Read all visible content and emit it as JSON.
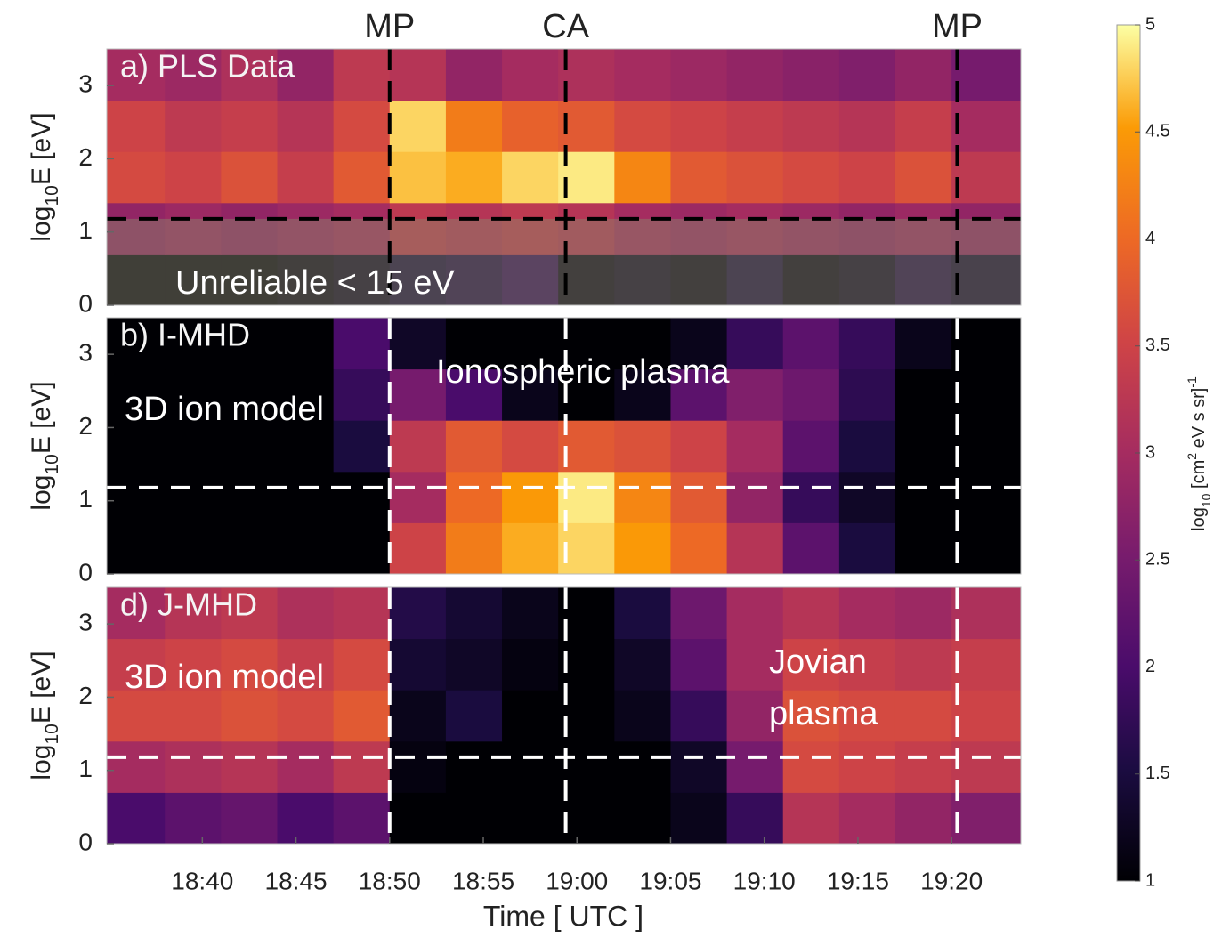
{
  "chart_data": [
    {
      "type": "heatmap",
      "title": "a) PLS Data",
      "markers": [
        {
          "label": "MP",
          "x": 50
        },
        {
          "label": "CA",
          "x": 59.4
        },
        {
          "label": "MP",
          "x": 80.3
        }
      ],
      "annotations": [
        "Unreliable < 15 eV"
      ],
      "hline": 1.18,
      "line_color": "#000000",
      "shade_below_hline": true,
      "ylabel": [
        "log",
        "10",
        "E [eV]"
      ],
      "xlim": [
        34.9,
        83.7
      ],
      "ylim": [
        0,
        3.5
      ],
      "yticks": [
        0,
        1,
        2,
        3
      ],
      "x_edges": [
        34.9,
        38,
        41,
        44,
        47,
        50,
        53,
        56,
        59,
        62,
        65,
        68,
        71,
        74,
        77,
        80,
        83.7
      ],
      "y_edges": [
        0,
        0.7,
        1.4,
        2.1,
        2.8,
        3.5
      ],
      "z": [
        [
          1.1,
          1.1,
          1.1,
          1.2,
          1.3,
          1.5,
          1.6,
          1.8,
          1.2,
          1.3,
          1.2,
          1.5,
          1.2,
          1.3,
          1.6,
          1.4
        ],
        [
          2.8,
          2.9,
          2.8,
          2.9,
          3.0,
          3.3,
          3.2,
          3.3,
          3.2,
          3.0,
          2.9,
          3.0,
          2.9,
          2.8,
          2.9,
          2.8
        ],
        [
          3.6,
          3.5,
          3.7,
          3.4,
          3.8,
          4.7,
          4.6,
          4.8,
          4.9,
          4.3,
          3.8,
          3.7,
          3.6,
          3.5,
          3.7,
          3.3
        ],
        [
          3.5,
          3.3,
          3.4,
          3.2,
          3.6,
          4.8,
          4.2,
          3.9,
          3.8,
          3.6,
          3.5,
          3.4,
          3.3,
          3.2,
          3.4,
          3.0
        ],
        [
          3.0,
          2.9,
          3.1,
          2.8,
          3.3,
          3.2,
          2.8,
          3.0,
          3.1,
          3.0,
          2.9,
          2.8,
          2.7,
          2.6,
          2.8,
          2.5
        ]
      ]
    },
    {
      "type": "heatmap",
      "title": "b) I-MHD",
      "annotations": [
        "3D ion model",
        "Ionospheric plasma"
      ],
      "hline": 1.18,
      "line_color": "#ffffff",
      "ylabel": [
        "log",
        "10",
        "E [eV]"
      ],
      "xlim": [
        34.9,
        83.7
      ],
      "ylim": [
        0,
        3.5
      ],
      "yticks": [
        0,
        1,
        2,
        3
      ],
      "x_edges": [
        34.9,
        38,
        41,
        44,
        47,
        50,
        53,
        56,
        59,
        62,
        65,
        68,
        71,
        74,
        77,
        80,
        83.7
      ],
      "y_edges": [
        0,
        0.7,
        1.4,
        2.1,
        2.8,
        3.5
      ],
      "z": [
        [
          1,
          1,
          1,
          1,
          1,
          3.5,
          4.2,
          4.6,
          4.8,
          4.5,
          4.0,
          3.2,
          2.2,
          1.5,
          1,
          1
        ],
        [
          1,
          1,
          1,
          1,
          1,
          3.0,
          4.0,
          4.5,
          4.9,
          4.3,
          3.8,
          2.8,
          1.8,
          1.3,
          1,
          1
        ],
        [
          1,
          1,
          1,
          1,
          1.5,
          3.3,
          3.8,
          3.6,
          3.8,
          3.7,
          3.5,
          3.0,
          2.2,
          1.5,
          1,
          1
        ],
        [
          1,
          1,
          1,
          1,
          1.8,
          2.5,
          2.0,
          1.2,
          1.0,
          1.2,
          2.2,
          2.6,
          2.4,
          1.7,
          1,
          1
        ],
        [
          1,
          1,
          1,
          1,
          2.0,
          1.3,
          1.0,
          1.0,
          1.0,
          1.0,
          1.2,
          1.8,
          2.2,
          1.8,
          1.2,
          1
        ]
      ]
    },
    {
      "type": "heatmap",
      "title": "d) J-MHD",
      "annotations": [
        "3D ion model",
        "Jovian",
        "plasma"
      ],
      "hline": 1.18,
      "line_color": "#ffffff",
      "ylabel": [
        "log",
        "10",
        "E [eV]"
      ],
      "xlabel": "Time [ UTC ]",
      "xlim": [
        34.9,
        83.7
      ],
      "ylim": [
        0,
        3.5
      ],
      "yticks": [
        0,
        1,
        2,
        3
      ],
      "xticks": [
        {
          "value": 40,
          "label": "18:40"
        },
        {
          "value": 45,
          "label": "18:45"
        },
        {
          "value": 50,
          "label": "18:50"
        },
        {
          "value": 55,
          "label": "18:55"
        },
        {
          "value": 60,
          "label": "19:00"
        },
        {
          "value": 65,
          "label": "19:05"
        },
        {
          "value": 70,
          "label": "19:10"
        },
        {
          "value": 75,
          "label": "19:15"
        },
        {
          "value": 80,
          "label": "19:20"
        }
      ],
      "x_edges": [
        34.9,
        38,
        41,
        44,
        47,
        50,
        53,
        56,
        59,
        62,
        65,
        68,
        71,
        74,
        77,
        80,
        83.7
      ],
      "y_edges": [
        0,
        0.7,
        1.4,
        2.1,
        2.8,
        3.5
      ],
      "z": [
        [
          2.0,
          2.2,
          2.3,
          2.0,
          2.2,
          1.0,
          1.0,
          1.0,
          1.0,
          1.0,
          1.2,
          1.8,
          3.2,
          3.0,
          2.8,
          2.6
        ],
        [
          3.0,
          3.1,
          3.2,
          3.0,
          3.3,
          1.1,
          1.0,
          1.0,
          1.0,
          1.0,
          1.3,
          2.5,
          3.6,
          3.5,
          3.4,
          3.3
        ],
        [
          3.6,
          3.6,
          3.7,
          3.6,
          3.8,
          1.2,
          1.5,
          1.0,
          1.0,
          1.2,
          1.8,
          2.8,
          3.7,
          3.6,
          3.6,
          3.5
        ],
        [
          3.4,
          3.5,
          3.6,
          3.4,
          3.6,
          1.4,
          1.3,
          1.1,
          1.0,
          1.3,
          2.2,
          3.0,
          3.5,
          3.4,
          3.3,
          3.4
        ],
        [
          3.0,
          3.2,
          3.3,
          3.1,
          3.2,
          1.6,
          1.4,
          1.2,
          1.0,
          1.5,
          2.4,
          3.0,
          3.2,
          3.0,
          2.9,
          3.1
        ]
      ]
    }
  ],
  "colorbar": {
    "clim": [
      1,
      5
    ],
    "ticks": [
      1,
      1.5,
      2,
      2.5,
      3,
      3.5,
      4,
      4.5,
      5
    ],
    "label": [
      "log",
      "10",
      " [cm",
      "2",
      " eV s sr]",
      "-1"
    ]
  }
}
